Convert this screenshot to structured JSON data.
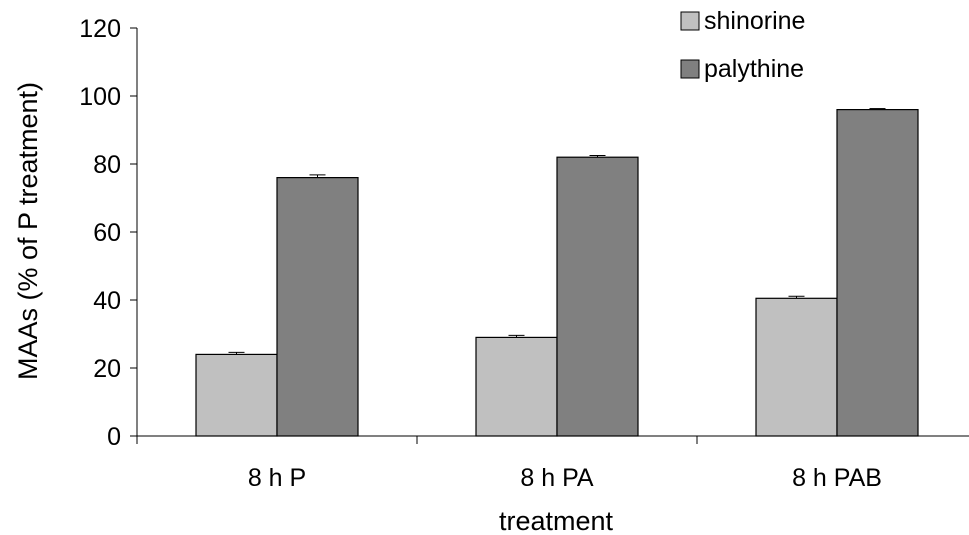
{
  "chart_data": {
    "type": "bar",
    "categories": [
      "8 h P",
      "8 h PA",
      "8 h PAB"
    ],
    "series": [
      {
        "name": "shinorine",
        "values": [
          24,
          29,
          40.5
        ],
        "errors": [
          0.6,
          0.6,
          0.6
        ],
        "color": "#c0c0c0"
      },
      {
        "name": "palythine",
        "values": [
          76,
          82,
          96
        ],
        "errors": [
          0.8,
          0.5,
          0.3
        ],
        "color": "#808080"
      }
    ],
    "xlabel": "treatment",
    "ylabel": "MAAs (% of P treatment)",
    "ylim": [
      0,
      120
    ],
    "yticks": [
      "0",
      "20",
      "40",
      "60",
      "80",
      "100",
      "120"
    ],
    "grid": false,
    "legend_position": "top-right"
  }
}
